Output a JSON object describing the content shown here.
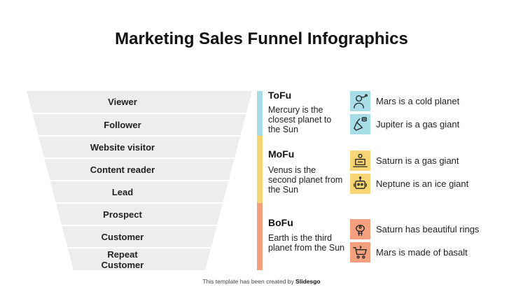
{
  "title": "Marketing Sales Funnel Infographics",
  "funnel_levels": [
    "Viewer",
    "Follower",
    "Website visitor",
    "Content reader",
    "Lead",
    "Prospect",
    "Customer",
    "Repeat Customer"
  ],
  "stages": [
    {
      "name": "ToFu",
      "description": "Mercury is the closest planet to the Sun",
      "color": "#a6dde7",
      "items": [
        {
          "icon": "person-icon",
          "text": "Mars is a cold planet"
        },
        {
          "icon": "megaphone-icon",
          "text": "Jupiter is a gas giant"
        }
      ]
    },
    {
      "name": "MoFu",
      "description": "Venus is the second planet from the Sun",
      "color": "#f7d572",
      "items": [
        {
          "icon": "laptop-user-icon",
          "text": "Saturn is a gas giant"
        },
        {
          "icon": "robot-icon",
          "text": "Neptune is an ice giant"
        }
      ]
    },
    {
      "name": "BoFu",
      "description": "Earth is the third planet from the Sun",
      "color": "#f4a07f",
      "items": [
        {
          "icon": "idea-head-icon",
          "text": "Saturn has beautiful rings"
        },
        {
          "icon": "shopping-cart-icon",
          "text": "Mars is made of basalt"
        }
      ]
    }
  ],
  "footer": {
    "prefix": "This template has been created by",
    "brand": "Slidesgo"
  }
}
